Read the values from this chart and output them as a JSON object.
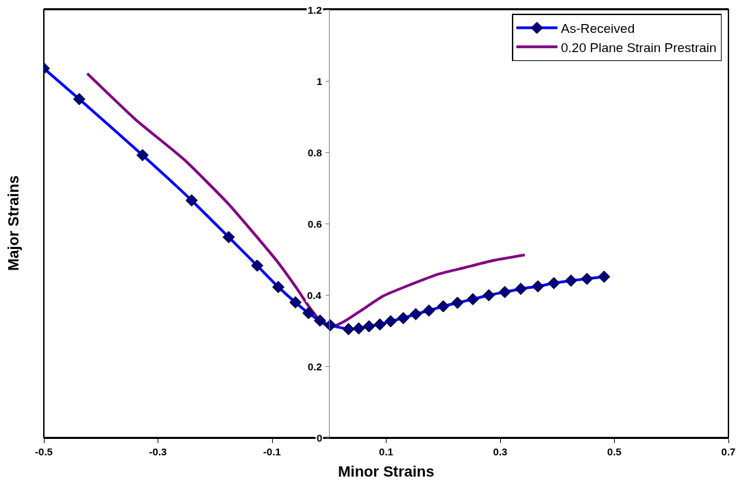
{
  "chart_data": {
    "type": "line",
    "xlabel": "Minor Strains",
    "ylabel": "Major Strains",
    "xlim": [
      -0.5,
      0.7
    ],
    "xticks": [
      -0.5,
      -0.3,
      -0.1,
      0.1,
      0.3,
      0.5,
      0.7
    ],
    "ylim": [
      0,
      1.2
    ],
    "yticks": [
      0,
      0.2,
      0.4,
      0.6,
      0.8,
      1,
      1.2
    ],
    "grid": false,
    "legend": "top right",
    "line_style": "solid",
    "series": [
      {
        "name": "As-Received",
        "color": "#0000ff",
        "marker": "diamond",
        "x": [
          -0.5,
          -0.438,
          -0.327,
          -0.241,
          -0.176,
          -0.126,
          -0.089,
          -0.059,
          -0.036,
          -0.016,
          0.002,
          0.034,
          0.052,
          0.07,
          0.089,
          0.108,
          0.13,
          0.152,
          0.175,
          0.2,
          0.225,
          0.252,
          0.28,
          0.308,
          0.336,
          0.366,
          0.394,
          0.424,
          0.452,
          0.482
        ],
        "values": [
          1.035,
          0.949,
          0.792,
          0.665,
          0.562,
          0.482,
          0.422,
          0.379,
          0.349,
          0.328,
          0.315,
          0.304,
          0.306,
          0.312,
          0.317,
          0.326,
          0.335,
          0.346,
          0.356,
          0.368,
          0.378,
          0.388,
          0.399,
          0.408,
          0.417,
          0.424,
          0.433,
          0.44,
          0.445,
          0.451
        ]
      },
      {
        "name": "0.20 Plane Strain Prestrain",
        "color": "#800080",
        "marker": "none",
        "x": [
          -0.424,
          -0.338,
          -0.253,
          -0.177,
          -0.129,
          -0.089,
          -0.057,
          -0.033,
          -0.013,
          0.003,
          0.027,
          0.055,
          0.095,
          0.143,
          0.191,
          0.239,
          0.287,
          0.343
        ],
        "values": [
          1.021,
          0.89,
          0.778,
          0.656,
          0.567,
          0.49,
          0.419,
          0.362,
          0.323,
          0.31,
          0.326,
          0.355,
          0.397,
          0.429,
          0.458,
          0.477,
          0.496,
          0.512
        ]
      }
    ]
  }
}
